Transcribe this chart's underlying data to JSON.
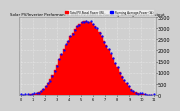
{
  "title": "Solar PV/Inverter Performance Total PV Panel & Running Average Power Output",
  "bg_color": "#d0d0d0",
  "plot_bg_color": "#d0d0d0",
  "bar_color": "#ff0000",
  "bar_edge_color": "#cc0000",
  "avg_color": "#0000ff",
  "ylim": [
    0,
    3500
  ],
  "yticks": [
    0,
    500,
    1000,
    1500,
    2000,
    2500,
    3000,
    3500
  ],
  "ytick_labels": [
    "0",
    "500",
    "1000",
    "1500",
    "2000",
    "2500",
    "3000",
    "3500"
  ],
  "num_bars": 60,
  "bar_heights": [
    5,
    8,
    10,
    15,
    20,
    30,
    50,
    80,
    120,
    180,
    280,
    400,
    550,
    700,
    900,
    1100,
    1350,
    1600,
    1850,
    2050,
    2250,
    2450,
    2650,
    2800,
    2950,
    3100,
    3200,
    3280,
    3320,
    3350,
    3300,
    3280,
    3200,
    3100,
    2980,
    2820,
    2650,
    2450,
    2250,
    2050,
    1850,
    1650,
    1450,
    1250,
    1050,
    850,
    680,
    520,
    380,
    260,
    180,
    120,
    80,
    55,
    35,
    22,
    14,
    9,
    6,
    3
  ],
  "avg_heights": [
    5,
    8,
    10,
    15,
    20,
    30,
    50,
    80,
    120,
    180,
    280,
    400,
    550,
    700,
    900,
    1100,
    1350,
    1600,
    1850,
    2050,
    2250,
    2450,
    2650,
    2800,
    2950,
    3100,
    3200,
    3280,
    3320,
    3350,
    3300,
    3280,
    3200,
    3100,
    2980,
    2820,
    2650,
    2450,
    2250,
    2050,
    1850,
    1650,
    1450,
    1250,
    1050,
    850,
    680,
    520,
    380,
    260,
    180,
    120,
    80,
    55,
    35,
    22,
    14,
    9,
    6,
    3
  ],
  "legend_items": [
    "Total PV Panel Power (W)",
    "Running Average Power (W)"
  ],
  "legend_colors": [
    "#ff0000",
    "#0000ff"
  ]
}
